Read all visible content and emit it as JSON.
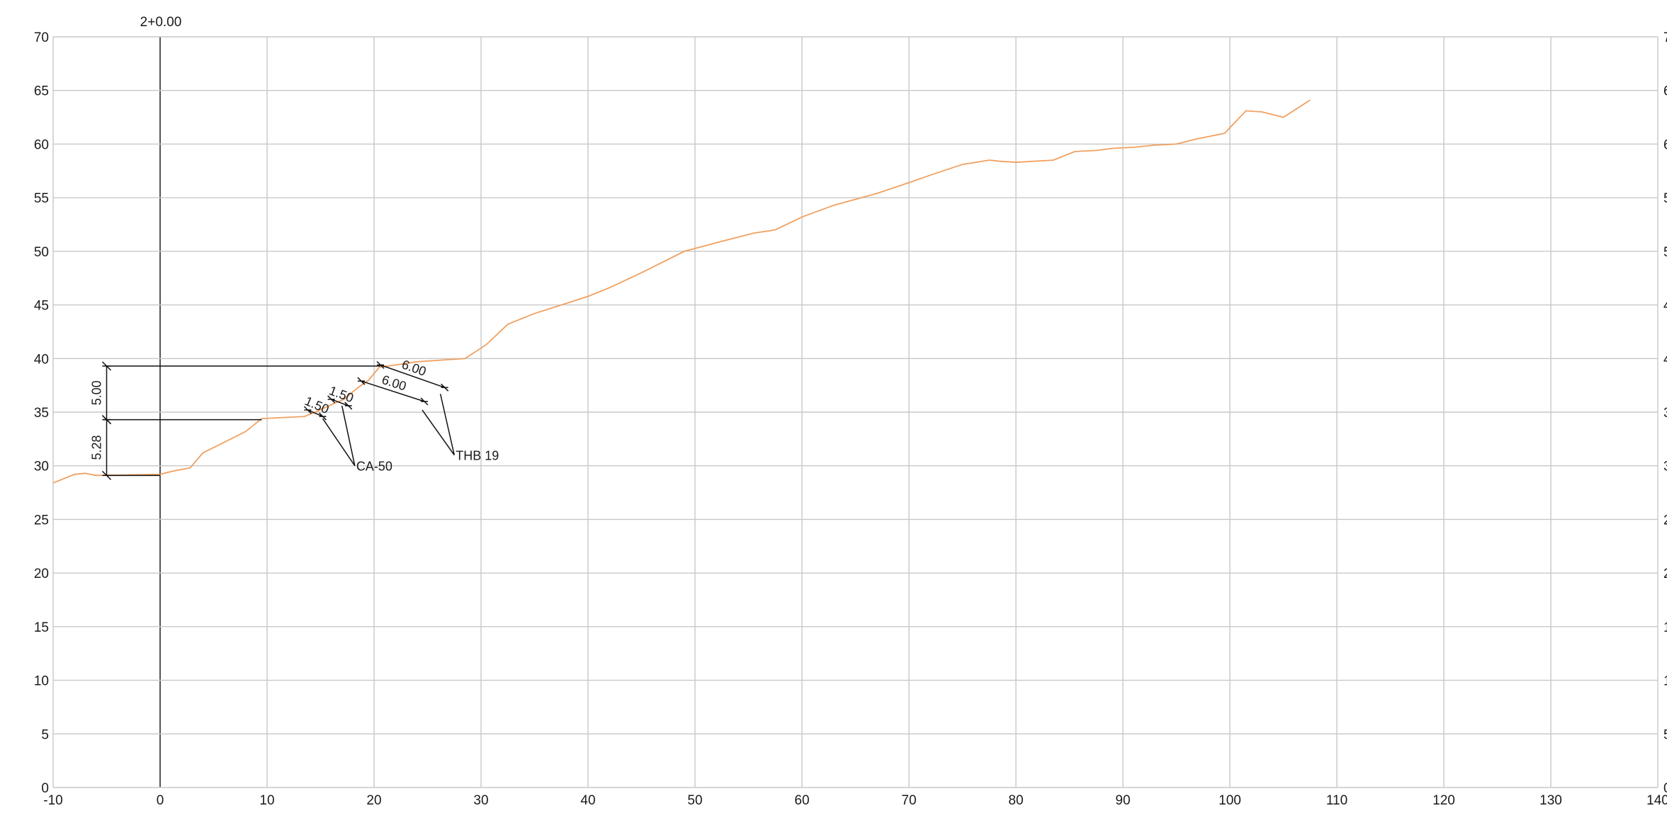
{
  "drawing": {
    "station_label": "2+0.00"
  },
  "chart_data": {
    "type": "line",
    "x_ticks": [
      -10,
      0,
      10,
      20,
      30,
      40,
      50,
      60,
      70,
      80,
      90,
      100,
      110,
      120,
      130,
      140
    ],
    "y_ticks": [
      0,
      5,
      10,
      15,
      20,
      25,
      30,
      35,
      40,
      45,
      50,
      55,
      60,
      65,
      70
    ],
    "xlim": [
      -10,
      140
    ],
    "ylim": [
      0,
      70
    ],
    "grid": true,
    "ground_color": "#f0a060",
    "ground_profile": [
      [
        -10,
        28.4
      ],
      [
        -8,
        29.2
      ],
      [
        -7,
        29.3
      ],
      [
        -6,
        29.1
      ],
      [
        0,
        29.2
      ],
      [
        1.2,
        29.5
      ],
      [
        2.8,
        29.8
      ],
      [
        4,
        31.2
      ],
      [
        6,
        32.2
      ],
      [
        8,
        33.2
      ],
      [
        9.5,
        34.4
      ],
      [
        13.5,
        34.6
      ],
      [
        14.7,
        35.1
      ],
      [
        16,
        35.7
      ],
      [
        17.2,
        36.2
      ],
      [
        18.5,
        37.3
      ],
      [
        19.5,
        38.0
      ],
      [
        20.5,
        39.2
      ],
      [
        22,
        39.4
      ],
      [
        24,
        39.7
      ],
      [
        28.5,
        40.0
      ],
      [
        30.5,
        41.3
      ],
      [
        32.5,
        43.2
      ],
      [
        35,
        44.2
      ],
      [
        40,
        45.8
      ],
      [
        42,
        46.6
      ],
      [
        45,
        48.0
      ],
      [
        49,
        50.0
      ],
      [
        52,
        50.8
      ],
      [
        55.5,
        51.7
      ],
      [
        57.5,
        52.0
      ],
      [
        60,
        53.2
      ],
      [
        63,
        54.3
      ],
      [
        67,
        55.4
      ],
      [
        70,
        56.4
      ],
      [
        72,
        57.1
      ],
      [
        75,
        58.1
      ],
      [
        77.5,
        58.5
      ],
      [
        78.5,
        58.4
      ],
      [
        80,
        58.3
      ],
      [
        83.5,
        58.5
      ],
      [
        85.5,
        59.3
      ],
      [
        87.5,
        59.4
      ],
      [
        89,
        59.6
      ],
      [
        91,
        59.7
      ],
      [
        93,
        59.9
      ],
      [
        95,
        60.0
      ],
      [
        97,
        60.5
      ],
      [
        99.5,
        61.0
      ],
      [
        101.5,
        63.1
      ],
      [
        103,
        63.0
      ],
      [
        105,
        62.5
      ],
      [
        107.5,
        64.1
      ]
    ],
    "dimensions": {
      "vertical": [
        {
          "label": "5.00",
          "x": -5,
          "from": 34.3,
          "to": 39.3
        },
        {
          "label": "5.28",
          "x": -5,
          "from": 29.1,
          "to": 34.3
        }
      ],
      "sloped": [
        {
          "label": "6.00",
          "from": [
            20.6,
            39.4
          ],
          "to": [
            26.6,
            37.3
          ]
        },
        {
          "label": "6.00",
          "from": [
            18.8,
            37.9
          ],
          "to": [
            24.7,
            36.0
          ]
        },
        {
          "label": "1.50",
          "from": [
            16.0,
            36.2
          ],
          "to": [
            17.6,
            35.6
          ]
        },
        {
          "label": "1.50",
          "from": [
            13.8,
            35.2
          ],
          "to": [
            15.2,
            34.6
          ]
        }
      ]
    },
    "callouts": [
      {
        "label": "CA-50",
        "at": [
          18.2,
          30.0
        ]
      },
      {
        "label": "THB 19",
        "at": [
          27.5,
          31.0
        ]
      }
    ]
  }
}
